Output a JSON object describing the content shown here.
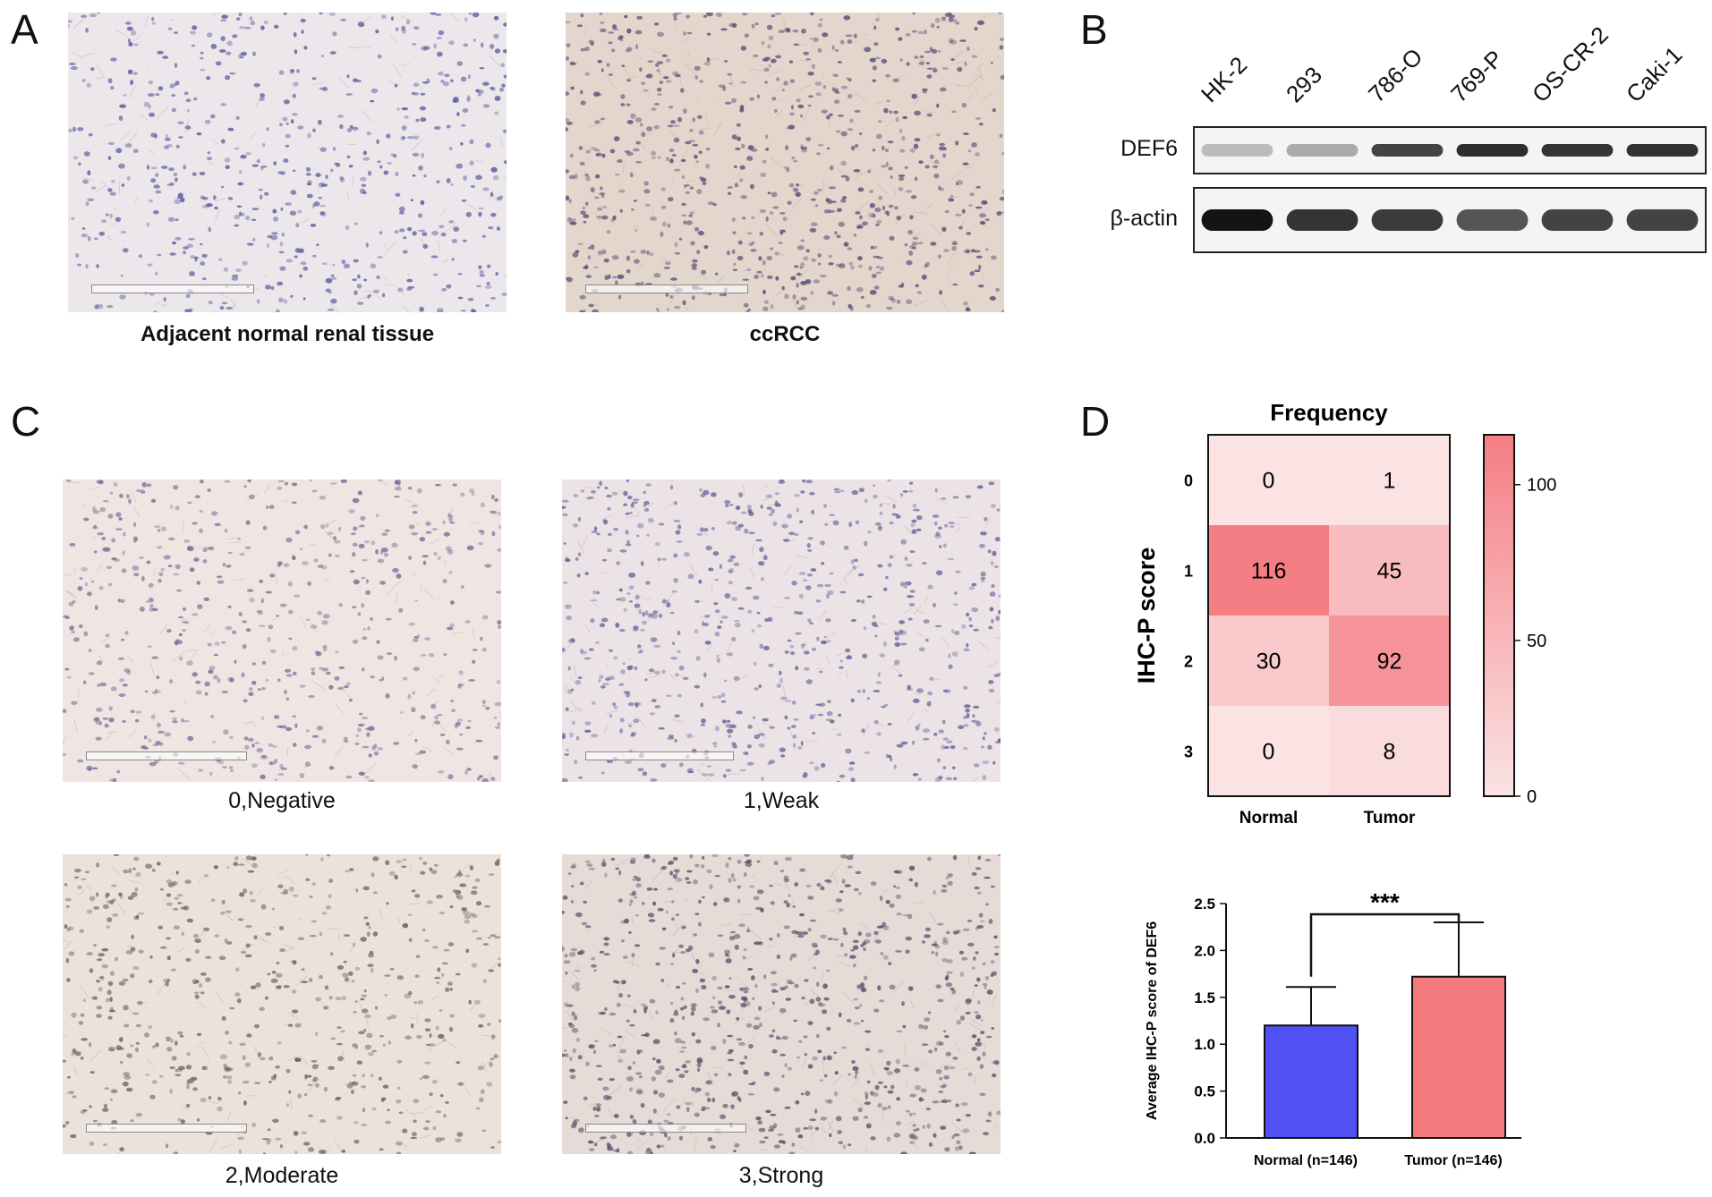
{
  "panels": {
    "a": {
      "letter": "A",
      "captions": [
        "Adjacent normal renal tissue",
        "ccRCC"
      ]
    },
    "b": {
      "letter": "B",
      "lanes": [
        "HK-2",
        "293",
        "786-O",
        "769-P",
        "OS-CR-2",
        "Caki-1"
      ],
      "rows": [
        "DEF6",
        "β-actin"
      ],
      "def6_intensity": [
        0.22,
        0.3,
        0.78,
        0.88,
        0.85,
        0.86
      ],
      "actin_intensity": [
        1.0,
        0.85,
        0.82,
        0.7,
        0.78,
        0.78
      ]
    },
    "c": {
      "letter": "C",
      "captions": [
        "0,Negative",
        "1,Weak",
        "2,Moderate",
        "3,Strong"
      ]
    },
    "d": {
      "letter": "D"
    }
  },
  "chart_data": [
    {
      "type": "heatmap",
      "title": "Frequency",
      "ylabel": "IHC-P score",
      "x": [
        "Normal",
        "Tumor"
      ],
      "y": [
        "0",
        "1",
        "2",
        "3"
      ],
      "values": [
        [
          0,
          1
        ],
        [
          116,
          45
        ],
        [
          30,
          92
        ],
        [
          0,
          8
        ]
      ],
      "colorbar": {
        "range": [
          0,
          116
        ],
        "ticks": [
          0,
          50,
          100
        ]
      },
      "colors": {
        "low": "#fbe3e4",
        "high": "#f47e84"
      }
    },
    {
      "type": "bar",
      "categories": [
        "Normal (n=146)",
        "Tumor (n=146)"
      ],
      "values": [
        1.2,
        1.72
      ],
      "errors": [
        0.41,
        0.58
      ],
      "ylabel": "Average IHC-P score of DEF6",
      "ylim": [
        0,
        2.5
      ],
      "yticks": [
        "0.0",
        "0.5",
        "1.0",
        "1.5",
        "2.0",
        "2.5"
      ],
      "significance": "***",
      "colors": [
        "#5050f5",
        "#f47a7e"
      ]
    }
  ]
}
